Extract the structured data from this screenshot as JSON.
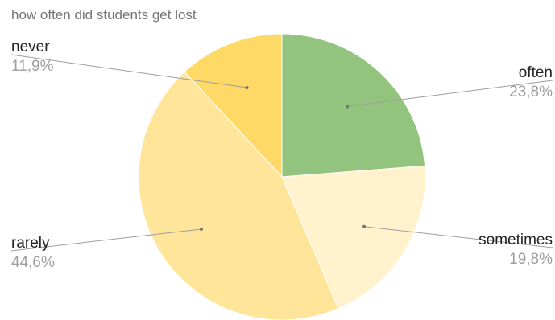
{
  "chart_data": {
    "type": "pie",
    "title": "how often did students get lost",
    "slices": [
      {
        "label": "often",
        "value": 23.8,
        "display": "23,8%",
        "color": "#93c47d"
      },
      {
        "label": "sometimes",
        "value": 19.8,
        "display": "19,8%",
        "color": "#fff2cc"
      },
      {
        "label": "rarely",
        "value": 44.6,
        "display": "44,6%",
        "color": "#ffe599"
      },
      {
        "label": "never",
        "value": 11.9,
        "display": "11,9%",
        "color": "#ffd966"
      }
    ],
    "start_angle_deg": 0,
    "direction": "clockwise",
    "legend": "none",
    "labels": "outside with leader lines"
  }
}
